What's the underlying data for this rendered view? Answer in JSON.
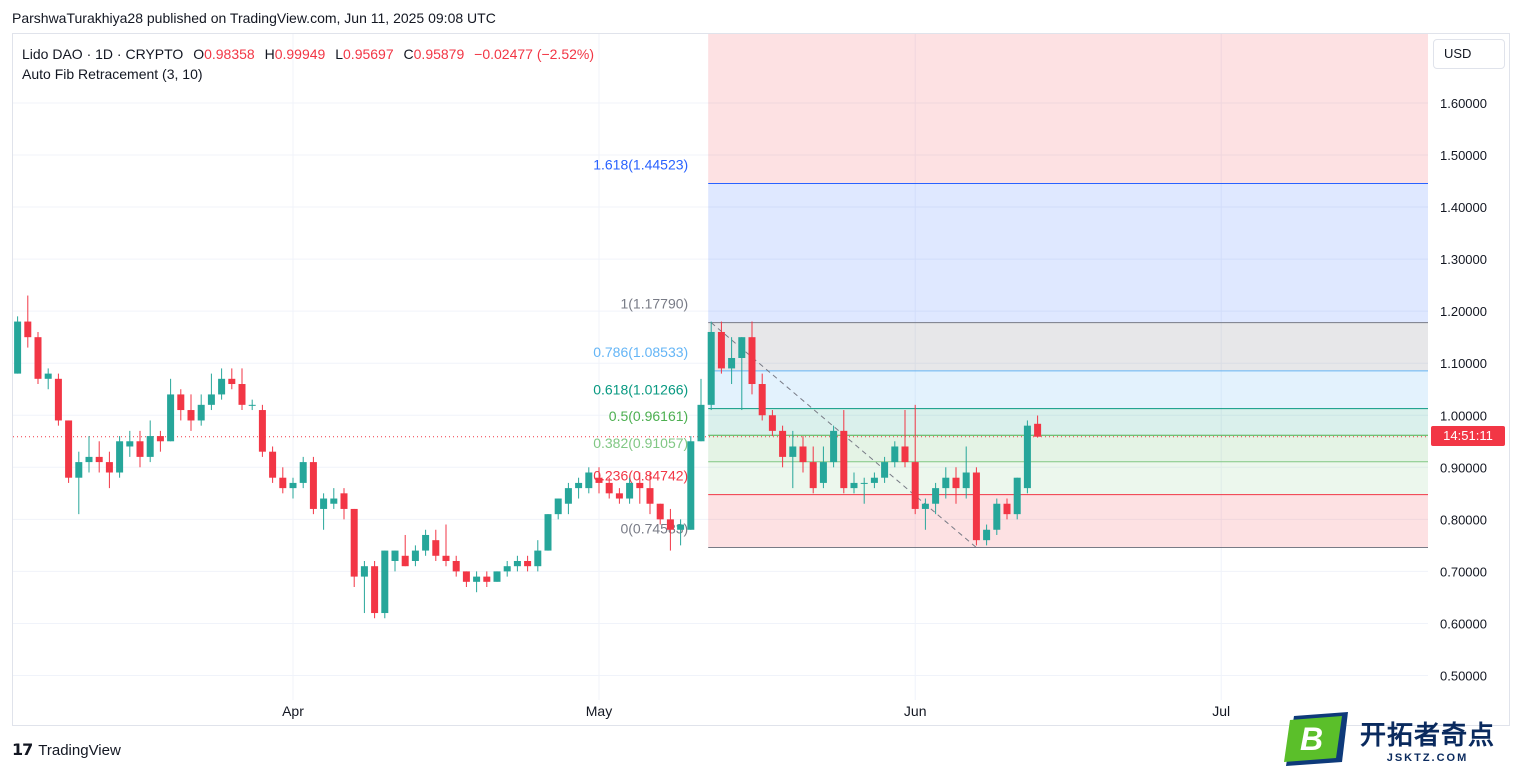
{
  "header": {
    "text": "ParshwaTurakhiya28 published on TradingView.com, Jun 11, 2025 09:08 UTC"
  },
  "legend": {
    "symbol": "Lido DAO · 1D · CRYPTO",
    "o_label": "O",
    "o_value": "0.98358",
    "h_label": "H",
    "h_value": "0.99949",
    "l_label": "L",
    "l_value": "0.95697",
    "c_label": "C",
    "c_value": "0.95879",
    "change": "−0.02477 (−2.52%)",
    "indicator": "Auto Fib Retracement (3, 10)"
  },
  "currency": "USD",
  "countdown": "14:51:11",
  "footer": {
    "brand": "TradingView"
  },
  "watermark": {
    "logo_letter": "B",
    "text": "开拓者奇点",
    "url": "JSKTZ.COM"
  },
  "colors": {
    "up": "#26a69a",
    "down": "#f23645",
    "fib_ext": "#2962ff",
    "fib_786": "#64b5f6",
    "fib_618": "#089981",
    "fib_5": "#4caf50",
    "fib_382": "#81c784",
    "fib_236": "#f23645",
    "fib_0": "#787b86",
    "fib_1": "#787b86"
  },
  "chart_data": {
    "type": "candlestick",
    "timeframe": "1D",
    "y_axis": {
      "ticks": [
        0.5,
        0.6,
        0.7,
        0.8,
        0.9,
        1.0,
        1.1,
        1.2,
        1.3,
        1.4,
        1.5,
        1.6
      ],
      "tick_labels": [
        "0.50000",
        "0.60000",
        "0.70000",
        "0.80000",
        "0.90000",
        "1.00000",
        "1.10000",
        "1.20000",
        "1.30000",
        "1.40000",
        "1.50000",
        "1.60000"
      ]
    },
    "x_axis": {
      "labels": [
        "Apr",
        "May",
        "Jun",
        "Jul"
      ],
      "dates": [
        "2025-04-01",
        "2025-05-01",
        "2025-06-01",
        "2025-07-01"
      ]
    },
    "last_close": 0.95879,
    "candles": [
      {
        "date": "2025-03-05",
        "o": 1.08,
        "h": 1.19,
        "l": 1.08,
        "c": 1.18
      },
      {
        "date": "2025-03-06",
        "o": 1.18,
        "h": 1.23,
        "l": 1.13,
        "c": 1.15
      },
      {
        "date": "2025-03-07",
        "o": 1.15,
        "h": 1.16,
        "l": 1.06,
        "c": 1.07
      },
      {
        "date": "2025-03-08",
        "o": 1.07,
        "h": 1.09,
        "l": 1.05,
        "c": 1.08
      },
      {
        "date": "2025-03-09",
        "o": 1.07,
        "h": 1.08,
        "l": 0.98,
        "c": 0.99
      },
      {
        "date": "2025-03-10",
        "o": 0.99,
        "h": 0.99,
        "l": 0.87,
        "c": 0.88
      },
      {
        "date": "2025-03-11",
        "o": 0.88,
        "h": 0.93,
        "l": 0.81,
        "c": 0.91
      },
      {
        "date": "2025-03-12",
        "o": 0.91,
        "h": 0.96,
        "l": 0.89,
        "c": 0.92
      },
      {
        "date": "2025-03-13",
        "o": 0.92,
        "h": 0.95,
        "l": 0.89,
        "c": 0.91
      },
      {
        "date": "2025-03-14",
        "o": 0.91,
        "h": 0.93,
        "l": 0.86,
        "c": 0.89
      },
      {
        "date": "2025-03-15",
        "o": 0.89,
        "h": 0.96,
        "l": 0.88,
        "c": 0.95
      },
      {
        "date": "2025-03-16",
        "o": 0.94,
        "h": 0.97,
        "l": 0.92,
        "c": 0.95
      },
      {
        "date": "2025-03-17",
        "o": 0.95,
        "h": 0.97,
        "l": 0.9,
        "c": 0.92
      },
      {
        "date": "2025-03-18",
        "o": 0.92,
        "h": 0.99,
        "l": 0.91,
        "c": 0.96
      },
      {
        "date": "2025-03-19",
        "o": 0.96,
        "h": 0.97,
        "l": 0.93,
        "c": 0.95
      },
      {
        "date": "2025-03-20",
        "o": 0.95,
        "h": 1.07,
        "l": 0.95,
        "c": 1.04
      },
      {
        "date": "2025-03-21",
        "o": 1.04,
        "h": 1.05,
        "l": 0.99,
        "c": 1.01
      },
      {
        "date": "2025-03-22",
        "o": 1.01,
        "h": 1.04,
        "l": 0.97,
        "c": 0.99
      },
      {
        "date": "2025-03-23",
        "o": 0.99,
        "h": 1.04,
        "l": 0.98,
        "c": 1.02
      },
      {
        "date": "2025-03-24",
        "o": 1.02,
        "h": 1.08,
        "l": 1.01,
        "c": 1.04
      },
      {
        "date": "2025-03-25",
        "o": 1.04,
        "h": 1.09,
        "l": 1.03,
        "c": 1.07
      },
      {
        "date": "2025-03-26",
        "o": 1.07,
        "h": 1.09,
        "l": 1.05,
        "c": 1.06
      },
      {
        "date": "2025-03-27",
        "o": 1.06,
        "h": 1.09,
        "l": 1.01,
        "c": 1.02
      },
      {
        "date": "2025-03-28",
        "o": 1.02,
        "h": 1.03,
        "l": 1.01,
        "c": 1.02
      },
      {
        "date": "2025-03-29",
        "o": 1.01,
        "h": 1.02,
        "l": 0.92,
        "c": 0.93
      },
      {
        "date": "2025-03-30",
        "o": 0.93,
        "h": 0.94,
        "l": 0.87,
        "c": 0.88
      },
      {
        "date": "2025-03-31",
        "o": 0.88,
        "h": 0.9,
        "l": 0.85,
        "c": 0.86
      },
      {
        "date": "2025-04-01",
        "o": 0.86,
        "h": 0.88,
        "l": 0.84,
        "c": 0.87
      },
      {
        "date": "2025-04-02",
        "o": 0.87,
        "h": 0.92,
        "l": 0.86,
        "c": 0.91
      },
      {
        "date": "2025-04-03",
        "o": 0.91,
        "h": 0.92,
        "l": 0.81,
        "c": 0.82
      },
      {
        "date": "2025-04-04",
        "o": 0.82,
        "h": 0.85,
        "l": 0.78,
        "c": 0.84
      },
      {
        "date": "2025-04-05",
        "o": 0.83,
        "h": 0.86,
        "l": 0.82,
        "c": 0.84
      },
      {
        "date": "2025-04-06",
        "o": 0.85,
        "h": 0.86,
        "l": 0.8,
        "c": 0.82
      },
      {
        "date": "2025-04-07",
        "o": 0.82,
        "h": 0.82,
        "l": 0.67,
        "c": 0.69
      },
      {
        "date": "2025-04-08",
        "o": 0.69,
        "h": 0.72,
        "l": 0.62,
        "c": 0.71
      },
      {
        "date": "2025-04-09",
        "o": 0.71,
        "h": 0.72,
        "l": 0.61,
        "c": 0.62
      },
      {
        "date": "2025-04-10",
        "o": 0.62,
        "h": 0.74,
        "l": 0.61,
        "c": 0.74
      },
      {
        "date": "2025-04-11",
        "o": 0.72,
        "h": 0.74,
        "l": 0.7,
        "c": 0.74
      },
      {
        "date": "2025-04-12",
        "o": 0.73,
        "h": 0.77,
        "l": 0.71,
        "c": 0.71
      },
      {
        "date": "2025-04-13",
        "o": 0.72,
        "h": 0.75,
        "l": 0.71,
        "c": 0.74
      },
      {
        "date": "2025-04-14",
        "o": 0.74,
        "h": 0.78,
        "l": 0.73,
        "c": 0.77
      },
      {
        "date": "2025-04-15",
        "o": 0.76,
        "h": 0.78,
        "l": 0.72,
        "c": 0.73
      },
      {
        "date": "2025-04-16",
        "o": 0.73,
        "h": 0.79,
        "l": 0.71,
        "c": 0.72
      },
      {
        "date": "2025-04-17",
        "o": 0.72,
        "h": 0.73,
        "l": 0.69,
        "c": 0.7
      },
      {
        "date": "2025-04-18",
        "o": 0.7,
        "h": 0.7,
        "l": 0.67,
        "c": 0.68
      },
      {
        "date": "2025-04-19",
        "o": 0.68,
        "h": 0.7,
        "l": 0.66,
        "c": 0.69
      },
      {
        "date": "2025-04-20",
        "o": 0.69,
        "h": 0.7,
        "l": 0.67,
        "c": 0.68
      },
      {
        "date": "2025-04-21",
        "o": 0.68,
        "h": 0.7,
        "l": 0.68,
        "c": 0.7
      },
      {
        "date": "2025-04-22",
        "o": 0.7,
        "h": 0.72,
        "l": 0.69,
        "c": 0.71
      },
      {
        "date": "2025-04-23",
        "o": 0.71,
        "h": 0.73,
        "l": 0.7,
        "c": 0.72
      },
      {
        "date": "2025-04-24",
        "o": 0.72,
        "h": 0.73,
        "l": 0.7,
        "c": 0.71
      },
      {
        "date": "2025-04-25",
        "o": 0.71,
        "h": 0.76,
        "l": 0.7,
        "c": 0.74
      },
      {
        "date": "2025-04-26",
        "o": 0.74,
        "h": 0.81,
        "l": 0.74,
        "c": 0.81
      },
      {
        "date": "2025-04-27",
        "o": 0.81,
        "h": 0.84,
        "l": 0.8,
        "c": 0.84
      },
      {
        "date": "2025-04-28",
        "o": 0.83,
        "h": 0.87,
        "l": 0.81,
        "c": 0.86
      },
      {
        "date": "2025-04-29",
        "o": 0.86,
        "h": 0.88,
        "l": 0.84,
        "c": 0.87
      },
      {
        "date": "2025-04-30",
        "o": 0.86,
        "h": 0.9,
        "l": 0.85,
        "c": 0.89
      },
      {
        "date": "2025-05-01",
        "o": 0.88,
        "h": 0.9,
        "l": 0.85,
        "c": 0.87
      },
      {
        "date": "2025-05-02",
        "o": 0.87,
        "h": 0.88,
        "l": 0.84,
        "c": 0.85
      },
      {
        "date": "2025-05-03",
        "o": 0.85,
        "h": 0.86,
        "l": 0.83,
        "c": 0.84
      },
      {
        "date": "2025-05-04",
        "o": 0.84,
        "h": 0.88,
        "l": 0.83,
        "c": 0.87
      },
      {
        "date": "2025-05-05",
        "o": 0.87,
        "h": 0.89,
        "l": 0.83,
        "c": 0.86
      },
      {
        "date": "2025-05-06",
        "o": 0.86,
        "h": 0.89,
        "l": 0.81,
        "c": 0.83
      },
      {
        "date": "2025-05-07",
        "o": 0.83,
        "h": 0.83,
        "l": 0.79,
        "c": 0.8
      },
      {
        "date": "2025-05-08",
        "o": 0.8,
        "h": 0.82,
        "l": 0.74,
        "c": 0.78
      },
      {
        "date": "2025-05-09",
        "o": 0.78,
        "h": 0.8,
        "l": 0.75,
        "c": 0.79
      },
      {
        "date": "2025-05-10",
        "o": 0.78,
        "h": 0.96,
        "l": 0.78,
        "c": 0.95
      },
      {
        "date": "2025-05-11",
        "o": 0.95,
        "h": 1.07,
        "l": 0.95,
        "c": 1.02
      },
      {
        "date": "2025-05-12",
        "o": 1.02,
        "h": 1.18,
        "l": 1.01,
        "c": 1.16
      },
      {
        "date": "2025-05-13",
        "o": 1.16,
        "h": 1.18,
        "l": 1.08,
        "c": 1.09
      },
      {
        "date": "2025-05-14",
        "o": 1.09,
        "h": 1.15,
        "l": 1.06,
        "c": 1.11
      },
      {
        "date": "2025-05-15",
        "o": 1.11,
        "h": 1.15,
        "l": 1.01,
        "c": 1.15
      },
      {
        "date": "2025-05-16",
        "o": 1.15,
        "h": 1.18,
        "l": 1.04,
        "c": 1.06
      },
      {
        "date": "2025-05-17",
        "o": 1.06,
        "h": 1.08,
        "l": 0.99,
        "c": 1.0
      },
      {
        "date": "2025-05-18",
        "o": 1.0,
        "h": 1.01,
        "l": 0.96,
        "c": 0.97
      },
      {
        "date": "2025-05-19",
        "o": 0.97,
        "h": 0.98,
        "l": 0.9,
        "c": 0.92
      },
      {
        "date": "2025-05-20",
        "o": 0.92,
        "h": 0.97,
        "l": 0.86,
        "c": 0.94
      },
      {
        "date": "2025-05-21",
        "o": 0.94,
        "h": 0.96,
        "l": 0.89,
        "c": 0.91
      },
      {
        "date": "2025-05-22",
        "o": 0.91,
        "h": 0.94,
        "l": 0.85,
        "c": 0.86
      },
      {
        "date": "2025-05-23",
        "o": 0.87,
        "h": 0.94,
        "l": 0.86,
        "c": 0.91
      },
      {
        "date": "2025-05-24",
        "o": 0.91,
        "h": 0.98,
        "l": 0.9,
        "c": 0.97
      },
      {
        "date": "2025-05-25",
        "o": 0.97,
        "h": 1.01,
        "l": 0.85,
        "c": 0.86
      },
      {
        "date": "2025-05-26",
        "o": 0.86,
        "h": 0.89,
        "l": 0.85,
        "c": 0.87
      },
      {
        "date": "2025-05-27",
        "o": 0.87,
        "h": 0.88,
        "l": 0.83,
        "c": 0.87
      },
      {
        "date": "2025-05-28",
        "o": 0.87,
        "h": 0.89,
        "l": 0.86,
        "c": 0.88
      },
      {
        "date": "2025-05-29",
        "o": 0.88,
        "h": 0.92,
        "l": 0.87,
        "c": 0.91
      },
      {
        "date": "2025-05-30",
        "o": 0.91,
        "h": 0.95,
        "l": 0.9,
        "c": 0.94
      },
      {
        "date": "2025-05-31",
        "o": 0.94,
        "h": 1.01,
        "l": 0.9,
        "c": 0.91
      },
      {
        "date": "2025-06-01",
        "o": 0.91,
        "h": 1.02,
        "l": 0.81,
        "c": 0.82
      },
      {
        "date": "2025-06-02",
        "o": 0.82,
        "h": 0.84,
        "l": 0.78,
        "c": 0.83
      },
      {
        "date": "2025-06-03",
        "o": 0.83,
        "h": 0.87,
        "l": 0.81,
        "c": 0.86
      },
      {
        "date": "2025-06-04",
        "o": 0.86,
        "h": 0.9,
        "l": 0.84,
        "c": 0.88
      },
      {
        "date": "2025-06-05",
        "o": 0.88,
        "h": 0.9,
        "l": 0.83,
        "c": 0.86
      },
      {
        "date": "2025-06-06",
        "o": 0.86,
        "h": 0.94,
        "l": 0.84,
        "c": 0.89
      },
      {
        "date": "2025-06-07",
        "o": 0.89,
        "h": 0.9,
        "l": 0.75,
        "c": 0.76
      },
      {
        "date": "2025-06-08",
        "o": 0.76,
        "h": 0.79,
        "l": 0.75,
        "c": 0.78
      },
      {
        "date": "2025-06-09",
        "o": 0.78,
        "h": 0.84,
        "l": 0.77,
        "c": 0.83
      },
      {
        "date": "2025-06-10",
        "o": 0.83,
        "h": 0.84,
        "l": 0.8,
        "c": 0.81
      },
      {
        "date": "2025-06-11",
        "o": 0.81,
        "h": 0.88,
        "l": 0.8,
        "c": 0.88
      },
      {
        "date": "2025-06-12",
        "o": 0.86,
        "h": 0.99,
        "l": 0.85,
        "c": 0.98
      },
      {
        "date": "2025-06-13",
        "o": 0.98358,
        "h": 0.99949,
        "l": 0.95697,
        "c": 0.95879
      }
    ],
    "fib_levels": [
      {
        "ratio": "1.618",
        "price": 1.44523,
        "label": "1.618(1.44523)"
      },
      {
        "ratio": "1",
        "price": 1.1779,
        "label": "1(1.17790)"
      },
      {
        "ratio": "0.786",
        "price": 1.08533,
        "label": "0.786(1.08533)"
      },
      {
        "ratio": "0.618",
        "price": 1.01266,
        "label": "0.618(1.01266)"
      },
      {
        "ratio": "0.5",
        "price": 0.96161,
        "label": "0.5(0.96161)"
      },
      {
        "ratio": "0.382",
        "price": 0.91057,
        "label": "0.382(0.91057)"
      },
      {
        "ratio": "0.236",
        "price": 0.84742,
        "label": "0.236(0.84742)"
      },
      {
        "ratio": "0",
        "price": 0.74583,
        "label": "0(0.74583)"
      }
    ],
    "fib_anchor": {
      "from_date": "2025-05-12",
      "from_price": 1.1779,
      "to_date": "2025-06-07",
      "to_price": 0.74583
    }
  }
}
